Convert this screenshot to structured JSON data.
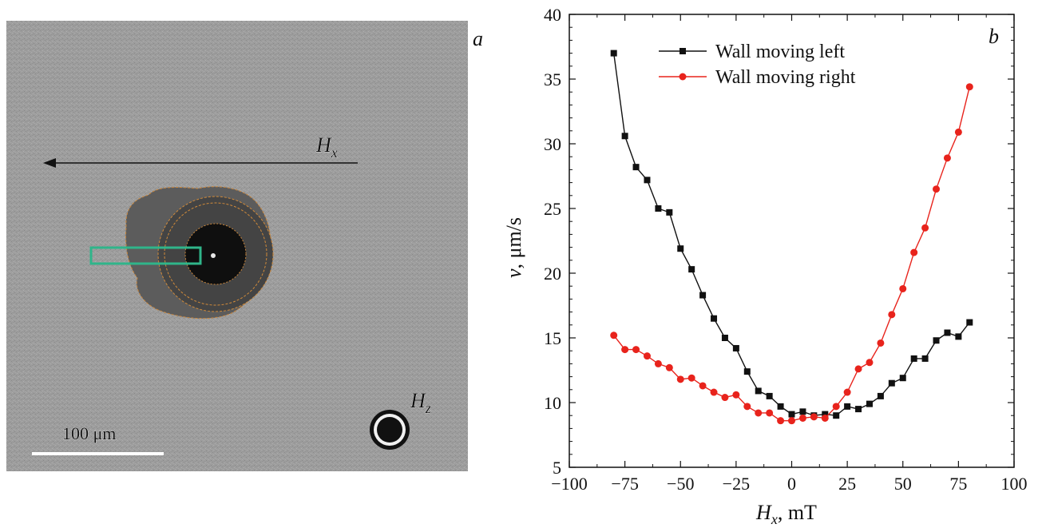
{
  "panel_a": {
    "label": "a",
    "field_x_label": "H",
    "field_x_sub": "x",
    "field_z_label": "H",
    "field_z_sub": "z",
    "scalebar_label": "100 μm",
    "colors": {
      "background": "#9b9b9b",
      "domain_outer": "#5a5a5a",
      "domain_mid": "#3f3f3f",
      "domain_core": "#0d0d0d",
      "contour": "#d08a3a",
      "roi_box": "#2fb58a",
      "arrow": "#111111"
    }
  },
  "chart_data": {
    "type": "line",
    "panel_label": "b",
    "xlabel_main": "H",
    "xlabel_sub": "x",
    "xlabel_unit": ", mT",
    "ylabel_main": "v",
    "ylabel_unit": ", μm/s",
    "xlim": [
      -100,
      100
    ],
    "ylim": [
      5,
      40
    ],
    "xticks": [
      -100,
      -75,
      -50,
      -25,
      0,
      25,
      50,
      75,
      100
    ],
    "xtick_labels": [
      "−100",
      "−75",
      "−50",
      "−25",
      "0",
      "25",
      "50",
      "75",
      "100"
    ],
    "yticks": [
      5,
      10,
      15,
      20,
      25,
      30,
      35,
      40
    ],
    "grid": false,
    "legend_position": "top-center",
    "series": [
      {
        "name": "Wall moving left",
        "color": "#111111",
        "marker": "square",
        "x": [
          -80,
          -75,
          -70,
          -65,
          -60,
          -55,
          -50,
          -45,
          -40,
          -35,
          -30,
          -25,
          -20,
          -15,
          -10,
          -5,
          0,
          5,
          10,
          15,
          20,
          25,
          30,
          35,
          40,
          45,
          50,
          55,
          60,
          65,
          70,
          75,
          80
        ],
        "y": [
          37.0,
          30.6,
          28.2,
          27.2,
          25.0,
          24.7,
          21.9,
          20.3,
          18.3,
          16.5,
          15.0,
          14.2,
          12.4,
          10.9,
          10.5,
          9.7,
          9.1,
          9.3,
          9.0,
          9.1,
          9.0,
          9.7,
          9.5,
          9.9,
          10.5,
          11.5,
          11.9,
          13.4,
          13.4,
          14.8,
          15.4,
          15.1,
          16.2
        ]
      },
      {
        "name": "Wall moving right",
        "color": "#e8231c",
        "marker": "circle",
        "x": [
          -80,
          -75,
          -70,
          -65,
          -60,
          -55,
          -50,
          -45,
          -40,
          -35,
          -30,
          -25,
          -20,
          -15,
          -10,
          -5,
          0,
          5,
          10,
          15,
          20,
          25,
          30,
          35,
          40,
          45,
          50,
          55,
          60,
          65,
          70,
          75,
          80
        ],
        "y": [
          15.2,
          14.1,
          14.1,
          13.6,
          13.0,
          12.7,
          11.8,
          11.9,
          11.3,
          10.8,
          10.4,
          10.6,
          9.7,
          9.2,
          9.2,
          8.6,
          8.6,
          8.8,
          8.9,
          8.8,
          9.7,
          10.8,
          12.6,
          13.1,
          14.6,
          16.8,
          18.8,
          21.6,
          23.5,
          26.5,
          28.9,
          30.9,
          34.4
        ]
      }
    ]
  }
}
